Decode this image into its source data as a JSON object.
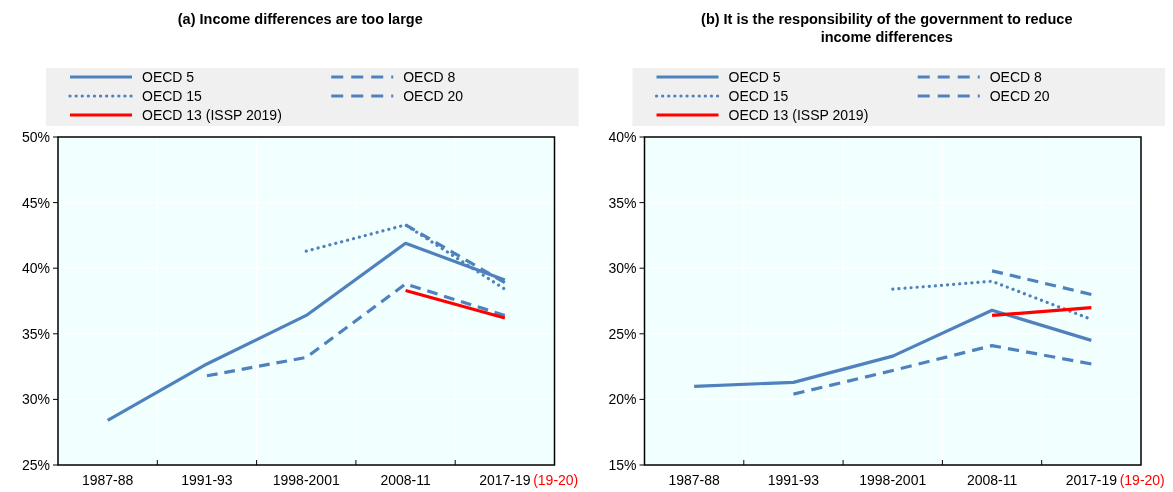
{
  "chart_data": [
    {
      "type": "line",
      "title": "(a) Income differences are too large",
      "categories": [
        "1987-88",
        "1991-93",
        "1998-2001",
        "2008-11",
        "2017-19"
      ],
      "annotations": [
        "(19-20)"
      ],
      "ylim": [
        25,
        50
      ],
      "yticks": [
        {
          "value": 25,
          "label": "25%"
        },
        {
          "value": 30,
          "label": "30%"
        },
        {
          "value": 35,
          "label": "35%"
        },
        {
          "value": 40,
          "label": "40%"
        },
        {
          "value": 45,
          "label": "45%"
        },
        {
          "value": 50,
          "label": "50%"
        }
      ],
      "grid": true,
      "legend": "top",
      "series": [
        {
          "name": "OECD 5",
          "color": "#4f81bd",
          "line_style": "solid",
          "values": [
            28.4,
            32.7,
            36.4,
            41.9,
            39.1
          ]
        },
        {
          "name": "OECD 8",
          "color": "#4f81bd",
          "line_style": "dashed",
          "values": [
            null,
            31.8,
            33.2,
            38.8,
            36.4
          ]
        },
        {
          "name": "OECD 15",
          "color": "#4f81bd",
          "line_style": "dotted",
          "values": [
            null,
            null,
            41.3,
            43.3,
            38.4
          ]
        },
        {
          "name": "OECD 20",
          "color": "#4f81bd",
          "line_style": "dashed",
          "values": [
            null,
            null,
            null,
            43.3,
            38.9
          ]
        },
        {
          "name": "OECD 13 (ISSP 2019)",
          "color": "#ff0000",
          "line_style": "solid",
          "values": [
            null,
            null,
            null,
            38.3,
            36.2
          ]
        }
      ]
    },
    {
      "type": "line",
      "title": "(b) It is the responsibility of the government to reduce income differences",
      "categories": [
        "1987-88",
        "1991-93",
        "1998-2001",
        "2008-11",
        "2017-19"
      ],
      "annotations": [
        "(19-20)"
      ],
      "ylim": [
        15,
        40
      ],
      "yticks": [
        {
          "value": 15,
          "label": "15%"
        },
        {
          "value": 20,
          "label": "20%"
        },
        {
          "value": 25,
          "label": "25%"
        },
        {
          "value": 30,
          "label": "30%"
        },
        {
          "value": 35,
          "label": "35%"
        },
        {
          "value": 40,
          "label": "40%"
        }
      ],
      "grid": true,
      "legend": "top",
      "series": [
        {
          "name": "OECD 5",
          "color": "#4f81bd",
          "line_style": "solid",
          "values": [
            21.0,
            21.3,
            23.3,
            26.8,
            24.5
          ]
        },
        {
          "name": "OECD 8",
          "color": "#4f81bd",
          "line_style": "dashed",
          "values": [
            null,
            20.4,
            22.2,
            24.1,
            22.7
          ]
        },
        {
          "name": "OECD 15",
          "color": "#4f81bd",
          "line_style": "dotted",
          "values": [
            null,
            null,
            28.4,
            29.0,
            26.1
          ]
        },
        {
          "name": "OECD 20",
          "color": "#4f81bd",
          "line_style": "dashed",
          "values": [
            null,
            null,
            null,
            29.8,
            28.0
          ]
        },
        {
          "name": "OECD 13 (ISSP 2019)",
          "color": "#ff0000",
          "line_style": "solid",
          "values": [
            null,
            null,
            null,
            26.4,
            27.0
          ]
        }
      ]
    }
  ]
}
